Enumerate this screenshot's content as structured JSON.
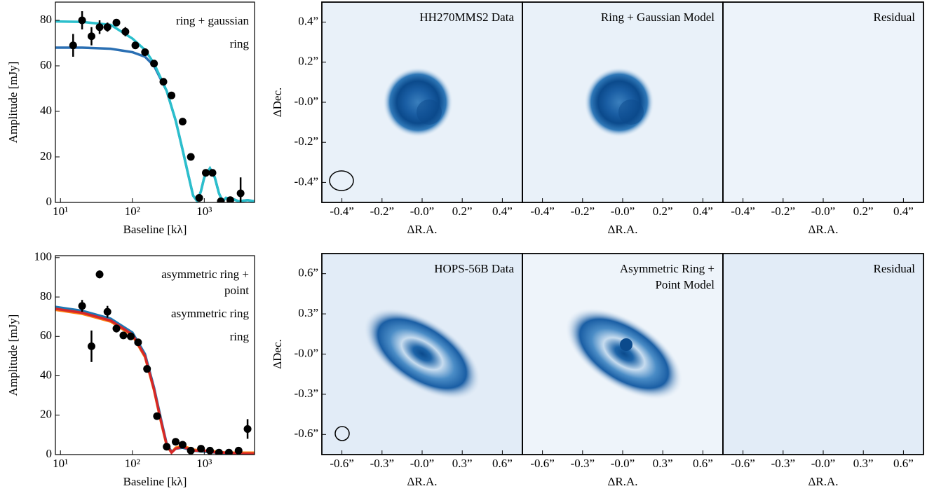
{
  "chart_data": [
    {
      "type": "line",
      "xlabel": "Baseline [kλ]",
      "ylabel": "Amplitude [mJy]",
      "xscale": "log",
      "xlim": [
        8.5,
        5000
      ],
      "xticks": [
        {
          "value": 10,
          "label": "10¹"
        },
        {
          "value": 100,
          "label": "10²"
        },
        {
          "value": 1000,
          "label": "10³"
        }
      ],
      "ylim": [
        0,
        88
      ],
      "yticks": [
        0,
        20,
        40,
        60,
        80
      ],
      "points": {
        "color": "#000000",
        "x": [
          15,
          20,
          27,
          35,
          45,
          60,
          80,
          110,
          150,
          200,
          270,
          350,
          500,
          650,
          850,
          1050,
          1300,
          1700,
          2300,
          3200
        ],
        "values": [
          69,
          80,
          73,
          77,
          77,
          79,
          75,
          69,
          66,
          61,
          53,
          47,
          35.5,
          20,
          2,
          13,
          13,
          0.5,
          1,
          4
        ],
        "errors": [
          5,
          4,
          4,
          3,
          2,
          1.5,
          2,
          1,
          1,
          1,
          1,
          1,
          1,
          1,
          1,
          1,
          1,
          1,
          1,
          7
        ]
      },
      "series": [
        {
          "name": "ring + gaussian",
          "color": "#2bbfcc",
          "x": [
            8.5,
            20,
            50,
            100,
            150,
            200,
            300,
            400,
            500,
            600,
            700,
            800,
            900,
            1000,
            1200,
            1400,
            1600,
            1800,
            2000,
            2500,
            3000,
            4000,
            5000
          ],
          "values": [
            79.5,
            79.3,
            78,
            72,
            67,
            61,
            49,
            36,
            23,
            12,
            3,
            0.5,
            5,
            11,
            15,
            11,
            4,
            0.5,
            2,
            1.5,
            0.5,
            1,
            0.5
          ]
        },
        {
          "name": "ring",
          "color": "#2a6fb3",
          "x": [
            8.5,
            20,
            50,
            100,
            150,
            200,
            300,
            400,
            500,
            600,
            700,
            800,
            900,
            1000,
            1200,
            1400,
            1600,
            1800,
            2000,
            2500,
            3000,
            4000,
            5000
          ],
          "values": [
            68,
            68,
            67.5,
            66,
            64,
            60,
            49,
            36,
            23,
            12,
            3,
            0.5,
            5,
            11,
            15,
            11,
            4,
            0.5,
            2,
            1.5,
            0.5,
            1,
            0.5
          ]
        }
      ]
    },
    {
      "type": "image",
      "title": "HH270MMS2 Data",
      "title_color": "#000000",
      "xlabel": "ΔR.A.",
      "ylabel": "ΔDec.",
      "xlim": [
        -0.5,
        0.5
      ],
      "xticks": [
        {
          "value": -0.4,
          "label": "-0.4”"
        },
        {
          "value": -0.2,
          "label": "-0.2”"
        },
        {
          "value": 0,
          "label": "-0.0”"
        },
        {
          "value": 0.2,
          "label": "0.2”"
        },
        {
          "value": 0.4,
          "label": "0.4”"
        }
      ],
      "ylim": [
        -0.5,
        0.5
      ],
      "yticks": [
        {
          "value": 0.4,
          "label": "0.4”"
        },
        {
          "value": 0.2,
          "label": "0.2”"
        },
        {
          "value": 0,
          "label": "-0.0”"
        },
        {
          "value": -0.2,
          "label": "-0.2”"
        },
        {
          "value": -0.4,
          "label": "-0.4”"
        }
      ]
    },
    {
      "type": "image",
      "title": "Ring + Gaussian Model",
      "title_color": "#2bbfcc",
      "xlabel": "ΔR.A.",
      "xlim": [
        -0.5,
        0.5
      ],
      "xticks": [
        {
          "value": -0.4,
          "label": "-0.4”"
        },
        {
          "value": -0.2,
          "label": "-0.2”"
        },
        {
          "value": 0,
          "label": "-0.0”"
        },
        {
          "value": 0.2,
          "label": "0.2”"
        },
        {
          "value": 0.4,
          "label": "0.4”"
        }
      ]
    },
    {
      "type": "image",
      "title": "Residual",
      "title_color": "#000000",
      "xlabel": "ΔR.A.",
      "xlim": [
        -0.5,
        0.5
      ],
      "xticks": [
        {
          "value": -0.4,
          "label": "-0.4”"
        },
        {
          "value": -0.2,
          "label": "-0.2”"
        },
        {
          "value": 0,
          "label": "-0.0”"
        },
        {
          "value": 0.2,
          "label": "0.2”"
        },
        {
          "value": 0.4,
          "label": "0.4”"
        }
      ]
    },
    {
      "type": "line",
      "xlabel": "Baseline [kλ]",
      "ylabel": "Amplitude [mJy]",
      "xscale": "log",
      "xlim": [
        8.5,
        5000
      ],
      "xticks": [
        {
          "value": 10,
          "label": "10¹"
        },
        {
          "value": 100,
          "label": "10²"
        },
        {
          "value": 1000,
          "label": "10³"
        }
      ],
      "ylim": [
        0,
        101
      ],
      "yticks": [
        0,
        20,
        40,
        60,
        80,
        100
      ],
      "points": {
        "color": "#000000",
        "x": [
          20,
          27,
          35,
          45,
          60,
          75,
          95,
          120,
          160,
          220,
          300,
          400,
          500,
          650,
          900,
          1200,
          1600,
          2200,
          3000,
          4000
        ],
        "values": [
          75.5,
          55,
          91.5,
          72.5,
          64,
          60.5,
          60,
          57,
          43.5,
          19.5,
          4,
          6.5,
          5,
          2,
          3,
          2,
          1,
          1,
          2,
          13
        ],
        "errors": [
          3,
          8,
          2,
          3,
          2,
          1.5,
          1.5,
          1,
          1,
          1,
          1,
          1,
          1,
          1,
          1,
          1,
          1,
          1,
          1,
          5
        ]
      },
      "series": [
        {
          "name": "asymmetric ring +\npoint",
          "color": "#d62728",
          "x": [
            8.5,
            20,
            50,
            100,
            150,
            200,
            250,
            300,
            350,
            400,
            500,
            700,
            1000,
            1500,
            2000,
            3000,
            5000
          ],
          "values": [
            74,
            72,
            68,
            61,
            50,
            33,
            17,
            5,
            1,
            3,
            4,
            2,
            2,
            1,
            1,
            0.5,
            0.5
          ]
        },
        {
          "name": "asymmetric ring",
          "color": "#ff7f0e",
          "x": [
            8.5,
            20,
            50,
            100,
            150,
            200,
            250,
            300,
            350,
            400,
            500,
            700,
            1000,
            1500,
            2000,
            3000,
            5000
          ],
          "values": [
            73.5,
            71.5,
            67.5,
            60.5,
            49.5,
            32.5,
            16.5,
            4.5,
            1,
            3.5,
            4.5,
            2.5,
            2,
            1.5,
            1,
            1,
            1
          ]
        },
        {
          "name": "ring",
          "color": "#1f77b4",
          "x": [
            8.5,
            20,
            50,
            100,
            150,
            200,
            250,
            300,
            350,
            400,
            500,
            700,
            1000,
            1500,
            2000,
            3000,
            5000
          ],
          "values": [
            75,
            73,
            69,
            62,
            51,
            34,
            18,
            5.5,
            1.5,
            3,
            3.5,
            2,
            1.5,
            1,
            0.5,
            0.5,
            0.5
          ]
        }
      ]
    },
    {
      "type": "image",
      "title": "HOPS-56B Data",
      "title_color": "#000000",
      "xlabel": "ΔR.A.",
      "ylabel": "ΔDec.",
      "xlim": [
        -0.75,
        0.75
      ],
      "xticks": [
        {
          "value": -0.6,
          "label": "-0.6”"
        },
        {
          "value": -0.3,
          "label": "-0.3”"
        },
        {
          "value": 0,
          "label": "-0.0”"
        },
        {
          "value": 0.3,
          "label": "0.3”"
        },
        {
          "value": 0.6,
          "label": "0.6”"
        }
      ],
      "ylim": [
        -0.75,
        0.75
      ],
      "yticks": [
        {
          "value": 0.6,
          "label": "0.6”"
        },
        {
          "value": 0.3,
          "label": "0.3”"
        },
        {
          "value": 0,
          "label": "-0.0”"
        },
        {
          "value": -0.3,
          "label": "-0.3”"
        },
        {
          "value": -0.6,
          "label": "-0.6”"
        }
      ]
    },
    {
      "type": "image",
      "title": "Asymmetric Ring +\nPoint Model",
      "title_color": "#d62728",
      "xlabel": "ΔR.A.",
      "xlim": [
        -0.75,
        0.75
      ],
      "xticks": [
        {
          "value": -0.6,
          "label": "-0.6”"
        },
        {
          "value": -0.3,
          "label": "-0.3”"
        },
        {
          "value": 0,
          "label": "-0.0”"
        },
        {
          "value": 0.3,
          "label": "0.3”"
        },
        {
          "value": 0.6,
          "label": "0.6”"
        }
      ]
    },
    {
      "type": "image",
      "title": "Residual",
      "title_color": "#000000",
      "xlabel": "ΔR.A.",
      "xlim": [
        -0.75,
        0.75
      ],
      "xticks": [
        {
          "value": -0.6,
          "label": "-0.6”"
        },
        {
          "value": -0.3,
          "label": "-0.3”"
        },
        {
          "value": 0,
          "label": "-0.0”"
        },
        {
          "value": 0.3,
          "label": "0.3”"
        },
        {
          "value": 0.6,
          "label": "0.6”"
        }
      ]
    }
  ]
}
